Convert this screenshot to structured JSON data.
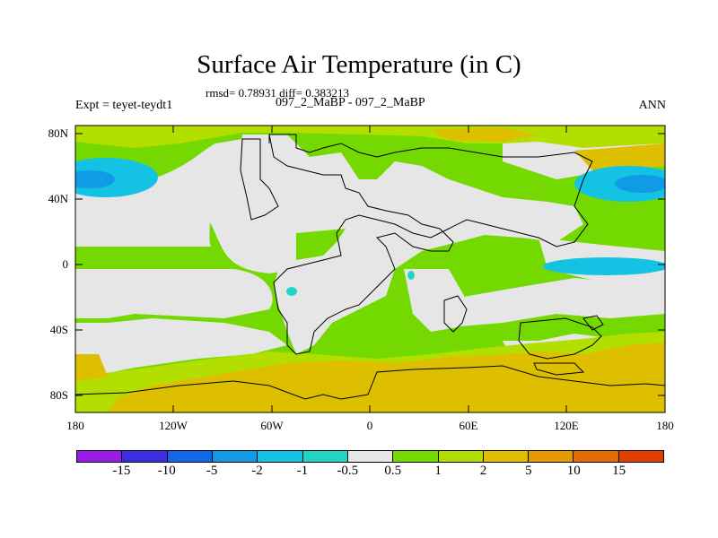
{
  "title": "Surface Air Temperature (in C)",
  "stats": "rmsd= 0.78931 diff= 0.383213",
  "experiment": "Expt = teyet-teydt1",
  "cases": "097_2_MaBP - 097_2_MaBP",
  "season": "ANN",
  "axes": {
    "y_ticks": [
      "80N",
      "40N",
      "0",
      "40S",
      "80S"
    ],
    "x_ticks": [
      "180",
      "120W",
      "60W",
      "0",
      "60E",
      "120E",
      "180"
    ]
  },
  "colorbar": {
    "colors": [
      "#9a1be8",
      "#3c2ee0",
      "#1167e8",
      "#119be6",
      "#14c3e3",
      "#20d5c2",
      "#e6e6e6",
      "#73d900",
      "#b2de00",
      "#ddbf00",
      "#e49a00",
      "#e26c00",
      "#e23e00"
    ],
    "labels": [
      "-15",
      "-10",
      "-5",
      "-2",
      "-1",
      "-0.5",
      "0.5",
      "1",
      "2",
      "5",
      "10",
      "15"
    ]
  }
}
